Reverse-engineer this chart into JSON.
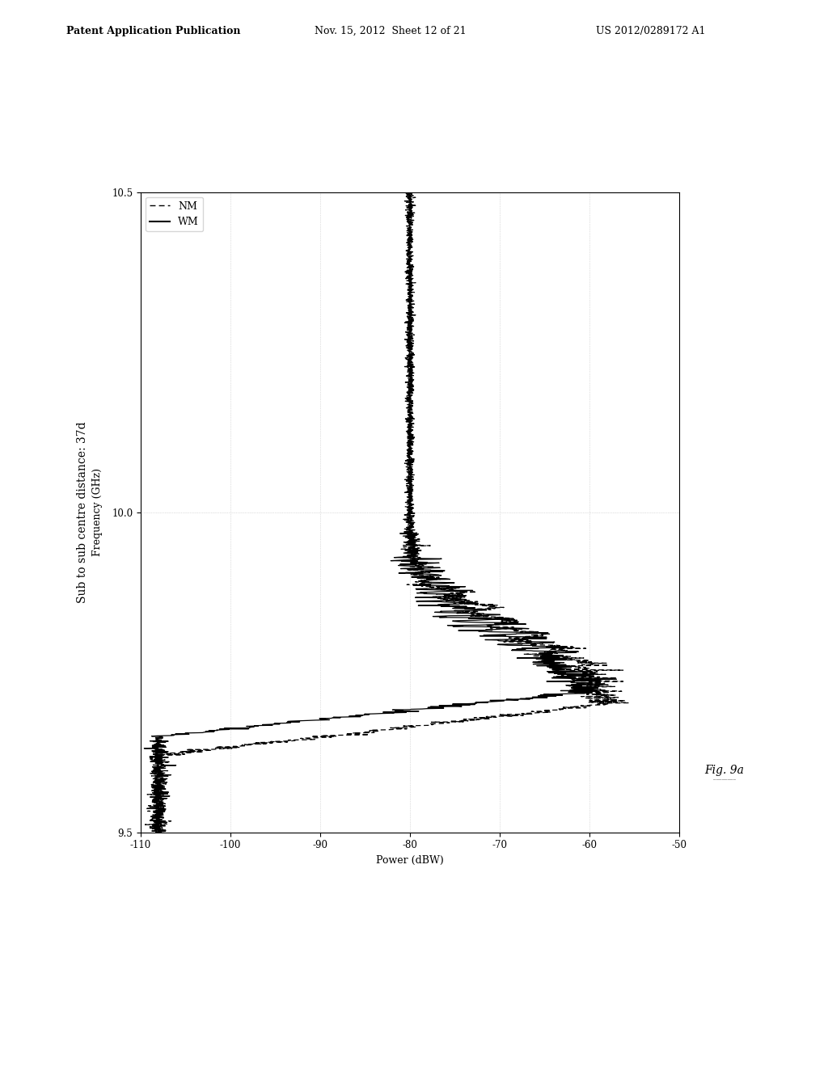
{
  "header_left": "Patent Application Publication",
  "header_center": "Nov. 15, 2012  Sheet 12 of 21",
  "header_right": "US 2012/0289172 A1",
  "title": "Sub to sub centre distance: 37d",
  "xlabel": "Frequency (GHz)",
  "ylabel": "Power (dBW)",
  "fig_label": "Fig. 9a",
  "xlim": [
    9.5,
    10.5
  ],
  "ylim": [
    -110,
    -50
  ],
  "xticks": [
    9.5,
    10.0,
    10.5
  ],
  "yticks": [
    -110,
    -100,
    -90,
    -80,
    -70,
    -60,
    -50
  ],
  "background_color": "#ffffff",
  "plot_bg_color": "#ffffff",
  "grid_color": "#b0b0b0",
  "line_color_WM": "#000000",
  "line_color_NM": "#000000",
  "legend_NM": "NM",
  "legend_WM": "WM"
}
